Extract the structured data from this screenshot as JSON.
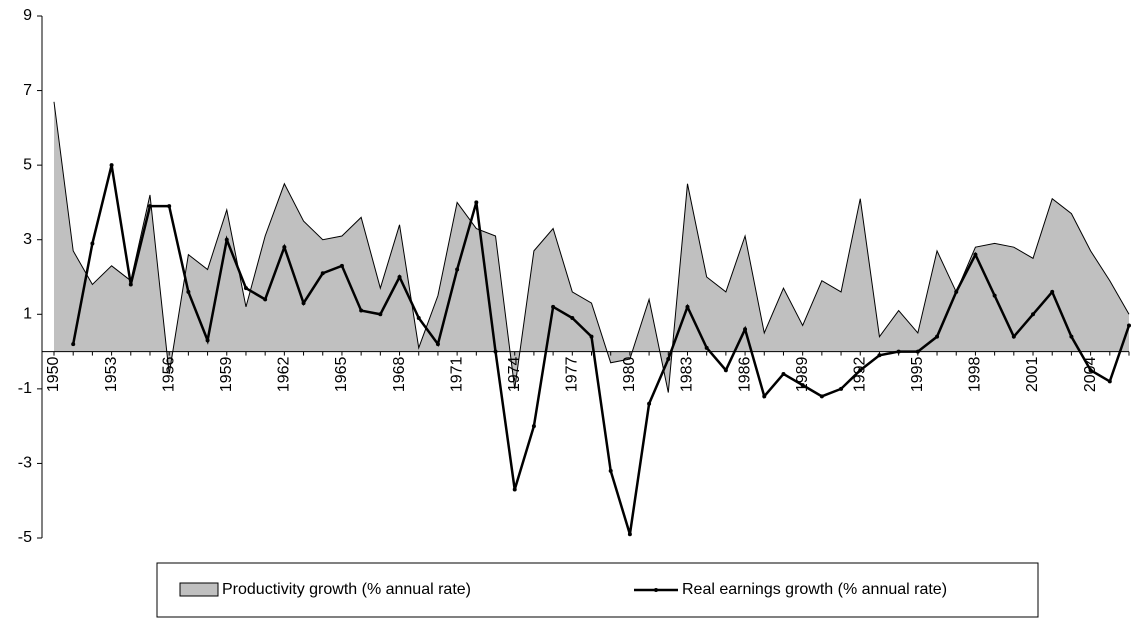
{
  "chart_data": {
    "type": "area-line",
    "categories": [
      "1950",
      null,
      null,
      "1953",
      null,
      null,
      "1956",
      null,
      null,
      "1959",
      null,
      null,
      "1962",
      null,
      null,
      "1965",
      null,
      null,
      "1968",
      null,
      null,
      "1971",
      null,
      null,
      "1974",
      null,
      null,
      "1977",
      null,
      null,
      "1980",
      null,
      null,
      "1983",
      null,
      null,
      "1986",
      null,
      null,
      "1989",
      null,
      null,
      "1992",
      null,
      null,
      "1995",
      null,
      null,
      "1998",
      null,
      null,
      "2001",
      null,
      null,
      "2004",
      null,
      null
    ],
    "series": [
      {
        "name": "Productivity growth (% annual rate)",
        "color": "#c0c0c0",
        "values": [
          6.7,
          2.7,
          1.8,
          2.3,
          1.9,
          4.2,
          -0.6,
          2.6,
          2.2,
          3.8,
          1.2,
          3.1,
          4.5,
          3.5,
          3.0,
          3.1,
          3.6,
          1.7,
          3.4,
          0.1,
          1.5,
          4.0,
          3.3,
          3.1,
          -1.0,
          2.7,
          3.3,
          1.6,
          1.3,
          -0.3,
          -0.2,
          1.4,
          -1.1,
          4.5,
          2.0,
          1.6,
          3.1,
          0.5,
          1.7,
          0.7,
          1.9,
          1.6,
          4.1,
          0.4,
          1.1,
          0.5,
          2.7,
          1.6,
          2.8,
          2.9,
          2.8,
          2.5,
          4.1,
          3.7,
          2.7,
          1.9,
          1.0
        ]
      },
      {
        "name": "Real earnings growth (% annual rate)",
        "color": "#000000",
        "values": [
          null,
          0.2,
          2.9,
          5.0,
          1.8,
          3.9,
          3.9,
          1.6,
          0.3,
          3.0,
          1.7,
          1.4,
          2.8,
          1.3,
          2.1,
          2.3,
          1.1,
          1.0,
          2.0,
          0.9,
          0.2,
          2.2,
          4.0,
          0.0,
          -3.7,
          -2.0,
          1.2,
          0.9,
          0.4,
          -3.2,
          -4.9,
          -1.4,
          -0.2,
          1.2,
          0.1,
          -0.5,
          0.6,
          -1.2,
          -0.6,
          -0.9,
          -1.2,
          -1.0,
          -0.5,
          -0.1,
          0.0,
          0.0,
          0.4,
          1.6,
          2.6,
          1.5,
          0.4,
          1.0,
          1.6,
          0.4,
          -0.5,
          -0.8,
          0.7
        ]
      }
    ],
    "ylim": [
      -5,
      9
    ],
    "yticks": [
      -5,
      -3,
      -1,
      1,
      3,
      5,
      7,
      9
    ],
    "grid": false,
    "legend": "bottom"
  }
}
